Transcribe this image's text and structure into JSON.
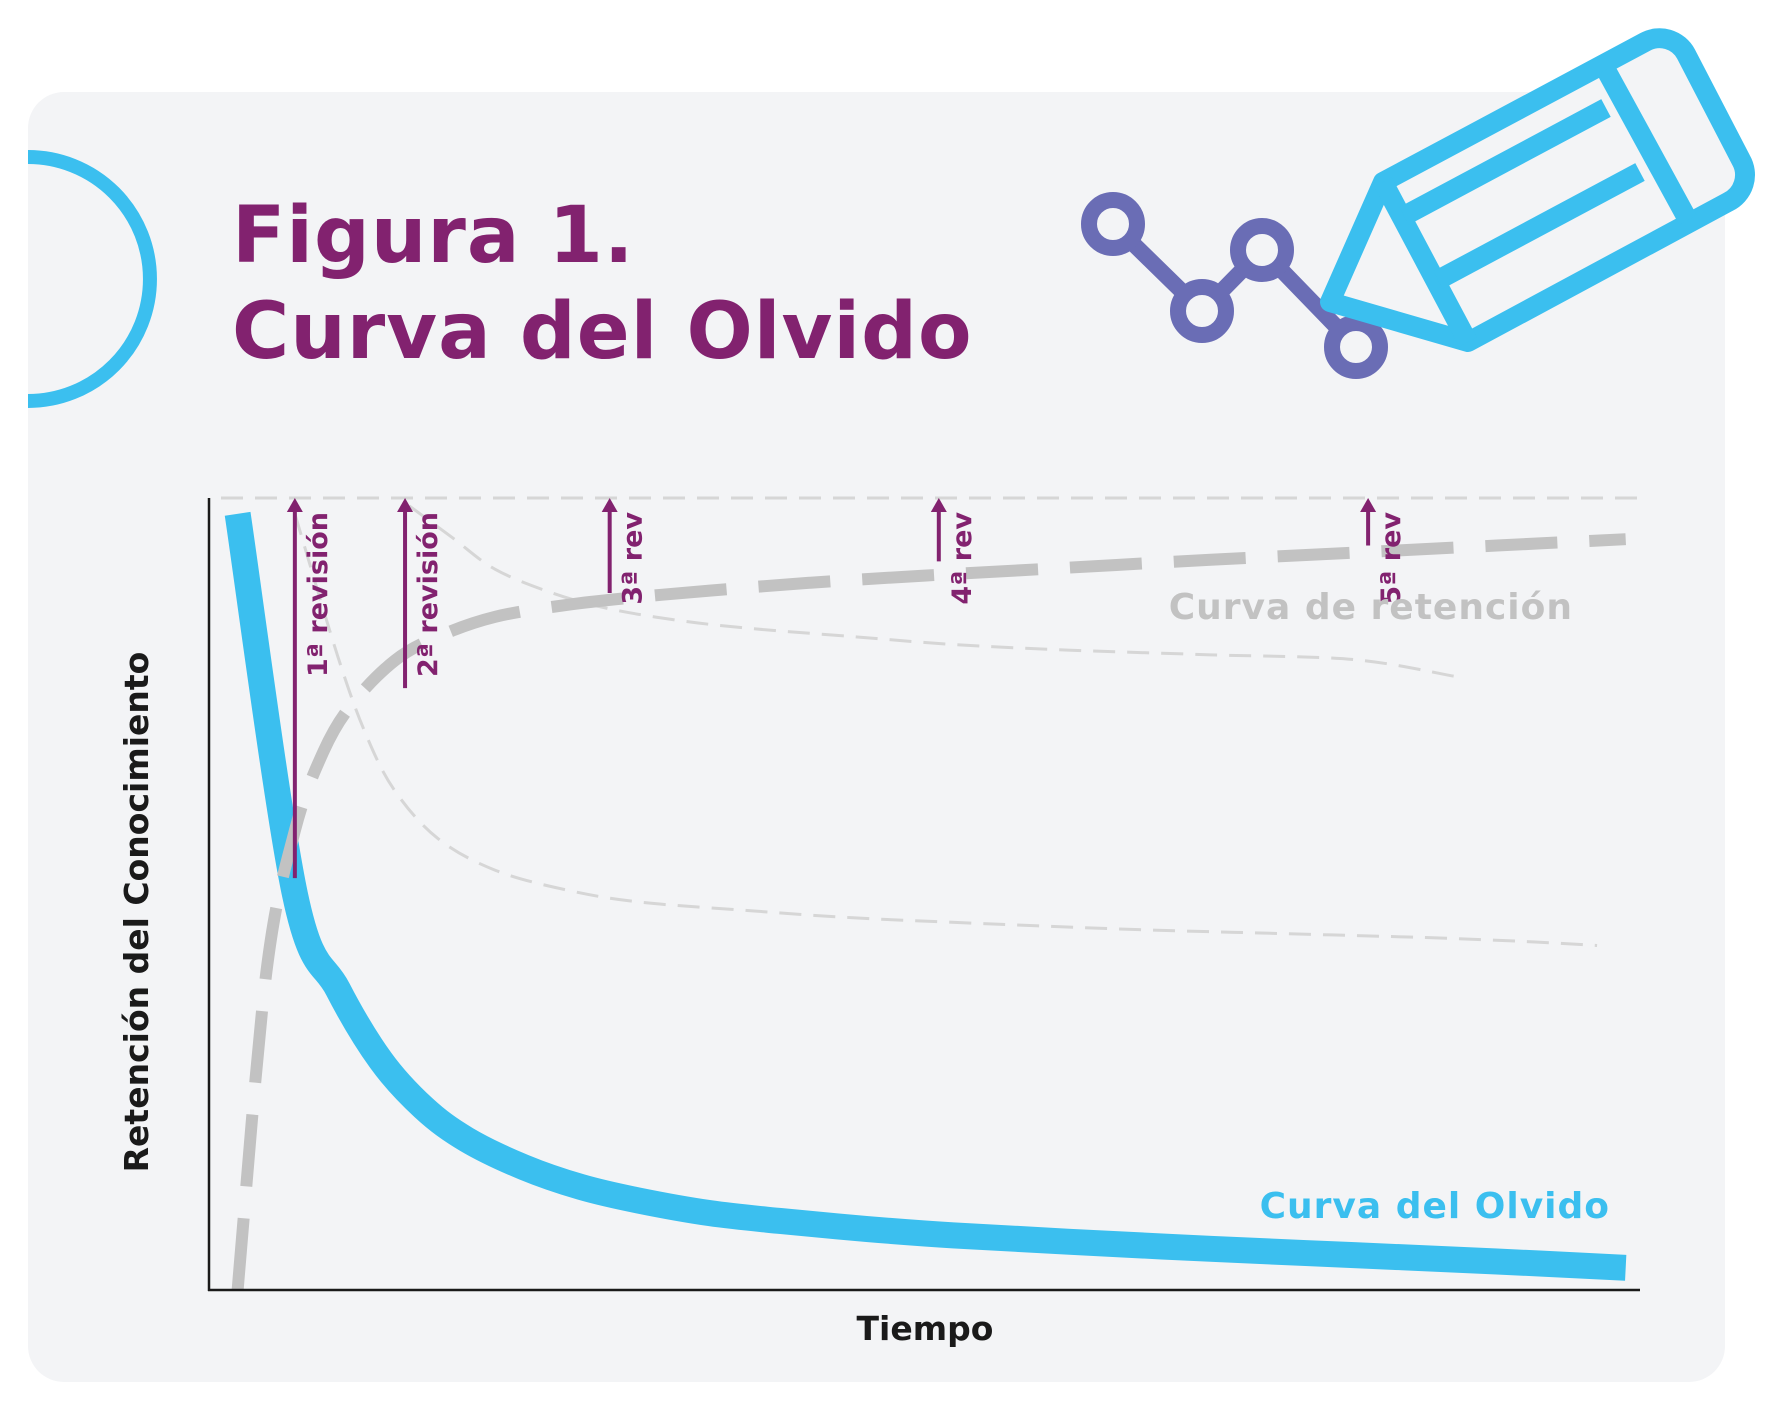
{
  "header": {
    "title_line1": "Figura 1.",
    "title_line2": "Curva del Olvido"
  },
  "icons": {
    "decor_circle": "half-circle-icon",
    "chart_icon": "line-chart-icon",
    "pencil_icon": "pencil-icon"
  },
  "colors": {
    "title": "#82226f",
    "forgetting_curve": "#3bbfef",
    "retention_curve": "#c2c2c2",
    "review_arrows": "#82226f",
    "accent_icon": "#6a6db5"
  },
  "chart_data": {
    "type": "line",
    "title": "",
    "xlabel": "Tiempo",
    "ylabel": "Retención del Conocimiento",
    "xlim": [
      0,
      100
    ],
    "ylim": [
      0,
      100
    ],
    "series": [
      {
        "name": "Curva del Olvido",
        "style": "thick-solid",
        "x": [
          2,
          6,
          9,
          12,
          15,
          18,
          22,
          26,
          30,
          35,
          40,
          46,
          52,
          60,
          70,
          80,
          90,
          99
        ],
        "values": [
          98,
          50,
          38,
          29,
          23,
          19,
          15.5,
          13,
          11.3,
          9.7,
          8.7,
          7.7,
          6.9,
          6.1,
          5.2,
          4.4,
          3.6,
          2.8
        ]
      },
      {
        "name": "Curva de retención",
        "style": "thick-dashed",
        "x": [
          2,
          4,
          6,
          8,
          10,
          13,
          16,
          20,
          25,
          30,
          35,
          42,
          50,
          60,
          70,
          80,
          90,
          99
        ],
        "values": [
          0,
          40,
          58,
          68,
          74,
          79.5,
          82.5,
          85,
          86.5,
          87.5,
          88.3,
          89.3,
          90.2,
          91.2,
          92.2,
          93.1,
          94,
          94.8
        ]
      },
      {
        "name": "",
        "style": "thin-dashed",
        "x": [
          6,
          9,
          11,
          13,
          16,
          20,
          25,
          30,
          37,
          45,
          55,
          65,
          75,
          85,
          92,
          97
        ],
        "values": [
          98,
          80,
          70,
          63,
          57,
          53,
          50.5,
          49,
          48,
          47,
          46.2,
          45.5,
          45,
          44.5,
          44,
          43.5
        ]
      },
      {
        "name": "",
        "style": "thin-dashed",
        "x": [
          14,
          17,
          20,
          24,
          28,
          33,
          38,
          45,
          52,
          60,
          70,
          80,
          87
        ],
        "values": [
          99,
          95,
          91,
          88,
          86,
          84.5,
          83.5,
          82.5,
          81.5,
          80.8,
          80.2,
          79.6,
          77.5
        ]
      }
    ],
    "reference_line": {
      "value": 100,
      "style": "thin-dashed"
    },
    "annotations": [
      {
        "label": "1ª revisión",
        "x": 6,
        "from": 52,
        "to": 100
      },
      {
        "label": "2ª revisión",
        "x": 13.7,
        "from": 76,
        "to": 100
      },
      {
        "label": "3ª rev",
        "x": 28,
        "from": 88,
        "to": 100
      },
      {
        "label": "4ª rev",
        "x": 51,
        "from": 92,
        "to": 100
      },
      {
        "label": "5ª rev",
        "x": 81,
        "from": 94,
        "to": 100
      }
    ],
    "legend": "inline-labels",
    "grid": false
  }
}
